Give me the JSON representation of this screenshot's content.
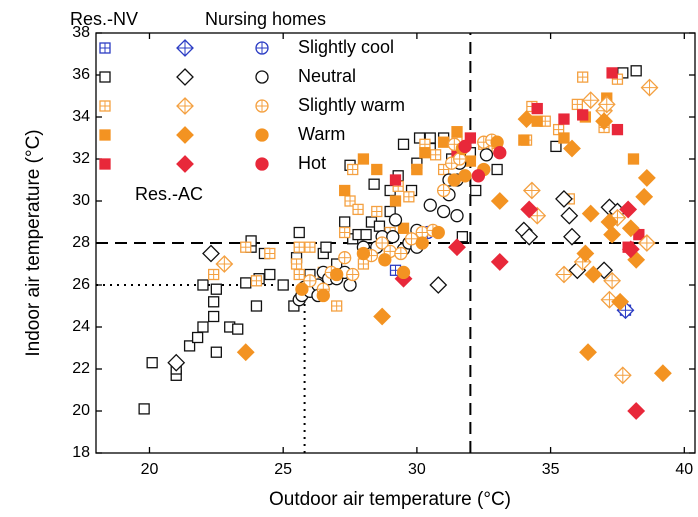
{
  "chart_data": {
    "type": "scatter",
    "xlabel": "Outdoor air temperature (°C)",
    "ylabel": "Indoor air temperature (°C)",
    "xlim": [
      18,
      40.4
    ],
    "ylim": [
      18,
      38
    ],
    "xticks": [
      20,
      25,
      30,
      35,
      40
    ],
    "yticks": [
      18,
      20,
      22,
      24,
      26,
      28,
      30,
      32,
      34,
      36,
      38
    ],
    "sensations": [
      {
        "label": "Slightly cool",
        "color": "#2b3cc4",
        "style": "plus"
      },
      {
        "label": "Neutral",
        "color": "#111111",
        "style": "open"
      },
      {
        "label": "Slightly warm",
        "color": "#f4a040",
        "style": "plus"
      },
      {
        "label": "Warm",
        "color": "#f39322",
        "style": "filled"
      },
      {
        "label": "Hot",
        "color": "#e8283a",
        "style": "filled"
      }
    ],
    "groups": [
      {
        "name": "Res.-NV",
        "marker": "square",
        "series": [
          {
            "x": [
              29.2,
              37.8
            ],
            "y": [
              26.7,
              24.8
            ]
          },
          {
            "x": [
              19.8,
              20.1,
              21,
              21,
              21.5,
              21.8,
              22,
              22,
              22.4,
              22.4,
              22.5,
              22.5,
              23,
              23.3,
              23.6,
              23.8,
              23.8,
              24,
              24.1,
              24.3,
              24.5,
              25,
              25.4,
              25.6,
              25.5,
              26,
              26.5,
              26.6,
              27,
              27.3,
              27.5,
              27.6,
              27.8,
              28.1,
              28.3,
              28.4,
              28.6,
              29,
              29,
              29.3,
              29.5,
              29.8,
              30,
              30.1,
              30.5,
              30.5,
              31,
              31.3,
              31.7,
              32,
              32.2,
              33,
              35.2,
              38.2,
              37.7
            ],
            "y": [
              20.1,
              22.3,
              21.7,
              22,
              23.1,
              23.5,
              24,
              26,
              24.5,
              25.2,
              22.8,
              25.8,
              24,
              23.9,
              26.1,
              27.8,
              28.1,
              25,
              26.3,
              27.5,
              26.5,
              26,
              25,
              28.5,
              27.3,
              26.5,
              27.5,
              27.8,
              27,
              29,
              31.7,
              28.2,
              28.4,
              28.4,
              29,
              30.8,
              28.8,
              29.5,
              30.5,
              31.2,
              32.7,
              30.5,
              31.8,
              33,
              32.5,
              33,
              33,
              32,
              28.3,
              32.3,
              30.5,
              31.5,
              32.6,
              36.2,
              36.1
            ]
          },
          {
            "x": [
              22.4,
              23.6,
              24,
              24.5,
              25.5,
              25.6,
              25.6,
              26,
              26.5,
              27,
              27.3,
              27.5,
              27.6,
              27.8,
              28,
              28.5,
              29,
              29.3,
              29.7,
              30,
              30.3,
              30.7,
              31,
              31.5,
              32.5,
              33,
              34.1,
              34.3,
              34.8,
              35.3,
              35.7,
              36,
              36.2,
              37,
              37.5
            ],
            "y": [
              26.5,
              27.8,
              26.2,
              27.5,
              27,
              26.5,
              27.8,
              27.8,
              26.6,
              25,
              28.5,
              30,
              31.5,
              29.6,
              27,
              29.5,
              28.5,
              30.7,
              30.2,
              31.5,
              32.7,
              32.2,
              31.5,
              32.8,
              32.7,
              32.5,
              32.9,
              34.5,
              33.8,
              33.4,
              30.1,
              34.6,
              35.9,
              33.5,
              35.8
            ]
          },
          {
            "x": [
              27.3,
              28,
              28.5,
              29.2,
              29.5,
              30,
              30.3,
              31,
              31.5,
              32,
              34,
              34.5,
              35.5,
              36.3,
              37.1,
              38.1
            ],
            "y": [
              30.5,
              32,
              31.5,
              30,
              28.7,
              31.5,
              32.3,
              32.8,
              33.3,
              31.9,
              32.9,
              33.8,
              33,
              34,
              34.9,
              32
            ]
          },
          {
            "x": [
              29.2,
              31.5,
              32,
              34.5,
              35.5,
              36.2,
              37.3,
              37.5,
              38.3,
              37.9
            ],
            "y": [
              31,
              32.2,
              33,
              34.4,
              33.9,
              34.1,
              36.1,
              33.4,
              28.4,
              27.8
            ]
          }
        ]
      },
      {
        "name": "Nursing homes",
        "marker": "diamond",
        "series": [
          {
            "x": [
              37.8
            ],
            "y": [
              24.8
            ]
          },
          {
            "x": [
              21,
              22.3,
              30.8,
              34,
              34.2,
              35.5,
              35.7,
              35.8,
              36,
              37,
              37.2,
              37.5
            ],
            "y": [
              22.3,
              27.5,
              26,
              28.6,
              28.3,
              30.1,
              29.3,
              28.3,
              26.7,
              26.7,
              29.7,
              29.5
            ]
          },
          {
            "x": [
              22.8,
              34.3,
              34.5,
              35.5,
              36.2,
              36.5,
              37,
              37.1,
              37.2,
              37.3,
              37.5,
              37.7,
              38.7,
              38.6
            ],
            "y": [
              27,
              30.5,
              29.3,
              26.5,
              27.1,
              34.8,
              34.3,
              34.6,
              25.3,
              26.2,
              29.2,
              21.7,
              35.4,
              28
            ]
          },
          {
            "x": [
              23.6,
              28.7,
              33.1,
              34.1,
              35.8,
              36.3,
              36.4,
              36.5,
              37,
              37.3,
              37.6,
              38,
              38.2,
              38.5,
              38.6,
              39.2,
              37.2,
              36.6
            ],
            "y": [
              22.8,
              24.5,
              30,
              33.9,
              32.5,
              27.5,
              22.8,
              29.4,
              33.8,
              28.4,
              25.2,
              28.7,
              27.2,
              30.2,
              31.1,
              21.8,
              29,
              26.5
            ]
          },
          {
            "x": [
              29.5,
              31.5,
              33.1,
              34.2,
              37.9,
              38,
              38.2
            ],
            "y": [
              26.3,
              27.8,
              27.1,
              29.6,
              29.6,
              27.7,
              20
            ]
          }
        ]
      },
      {
        "name": "Res.-AC",
        "marker": "circle",
        "series": [
          {
            "x": [
              30.4
            ],
            "y": [
              28.5
            ]
          },
          {
            "x": [
              25.6,
              25.7,
              25.8,
              26,
              26.3,
              26.3,
              26.5,
              26.7,
              27,
              27.3,
              27.5,
              28,
              28.3,
              28.5,
              28.7,
              29.1,
              29.2,
              29.5,
              29.7,
              30,
              30,
              30.5,
              31,
              31.2,
              31.2,
              31.5,
              31.6,
              32.6,
              31.5
            ],
            "y": [
              25.3,
              25.5,
              25.9,
              25.7,
              26,
              25.5,
              26.6,
              26.3,
              26.3,
              26.6,
              26,
              27.8,
              27.5,
              27.8,
              28.3,
              28.3,
              29.1,
              27.7,
              28,
              28.6,
              27.8,
              29.8,
              29.5,
              30.3,
              31,
              31,
              31.8,
              32.2,
              29.3
            ]
          },
          {
            "x": [
              26,
              26.5,
              26.8,
              27.3,
              27.6,
              28.3,
              28.7,
              29,
              29.4,
              29.8,
              30.2,
              30.6,
              31,
              31.3,
              31.6,
              32.5,
              32.8,
              31.4
            ],
            "y": [
              26.2,
              25.8,
              26.6,
              27.3,
              26.5,
              27.4,
              28,
              27.6,
              27.5,
              28.2,
              28.5,
              28.6,
              30.5,
              31.8,
              32,
              32.8,
              32.9,
              32.7
            ]
          },
          {
            "x": [
              25.7,
              26.5,
              27,
              28,
              28.8,
              29.5,
              30.2,
              30.8,
              31.4,
              31.8,
              32.5,
              33,
              31.7
            ],
            "y": [
              25.8,
              25.5,
              26.5,
              27.5,
              27.2,
              26.6,
              28,
              28.5,
              31,
              31.2,
              31.5,
              32.8,
              32.5
            ]
          },
          {
            "x": [
              31.8,
              32.3,
              33.1
            ],
            "y": [
              32.6,
              31.2,
              32.3
            ]
          }
        ]
      }
    ],
    "reference_lines": [
      {
        "axis": "x",
        "value": 32,
        "style": "dashed"
      },
      {
        "axis": "y",
        "value": 28,
        "style": "dashed"
      },
      {
        "axis": "x",
        "value": 25.8,
        "to": 26,
        "style": "dotted"
      },
      {
        "axis": "y",
        "value": 26,
        "to": 25.8,
        "style": "dotted"
      }
    ]
  }
}
